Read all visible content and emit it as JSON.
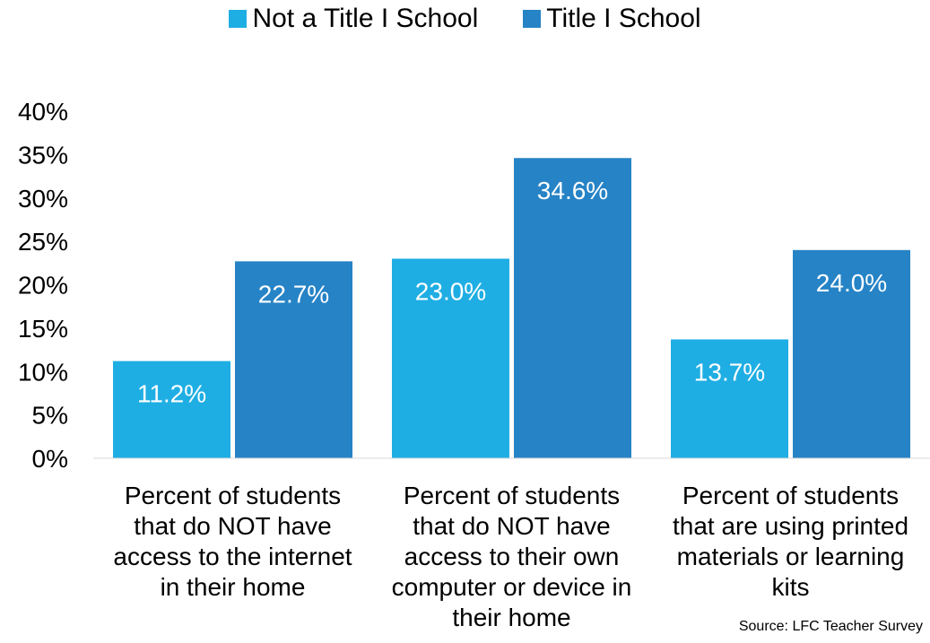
{
  "chart_data": {
    "type": "bar",
    "categories": [
      [
        "Percent of students",
        "that do NOT have",
        "access to the internet",
        "in their home"
      ],
      [
        "Percent of students",
        "that do NOT have",
        "access to their own",
        "computer or device in",
        "their home"
      ],
      [
        "Percent of students",
        "that are using printed",
        "materials or learning",
        "kits"
      ]
    ],
    "series": [
      {
        "name": "Not a Title I School",
        "color": "#1FAEE3",
        "values": [
          11.2,
          23.0,
          13.7
        ],
        "labels": [
          "11.2%",
          "23.0%",
          "13.7%"
        ]
      },
      {
        "name": "Title I School",
        "color": "#2683C6",
        "values": [
          22.7,
          34.6,
          24.0
        ],
        "labels": [
          "22.7%",
          "34.6%",
          "24.0%"
        ]
      }
    ],
    "ylim": [
      0,
      40
    ],
    "yticks": [
      "0%",
      "5%",
      "10%",
      "15%",
      "20%",
      "25%",
      "30%",
      "35%",
      "40%"
    ],
    "grid": false,
    "legend_position": "top-center"
  },
  "source": "Source: LFC Teacher Survey"
}
